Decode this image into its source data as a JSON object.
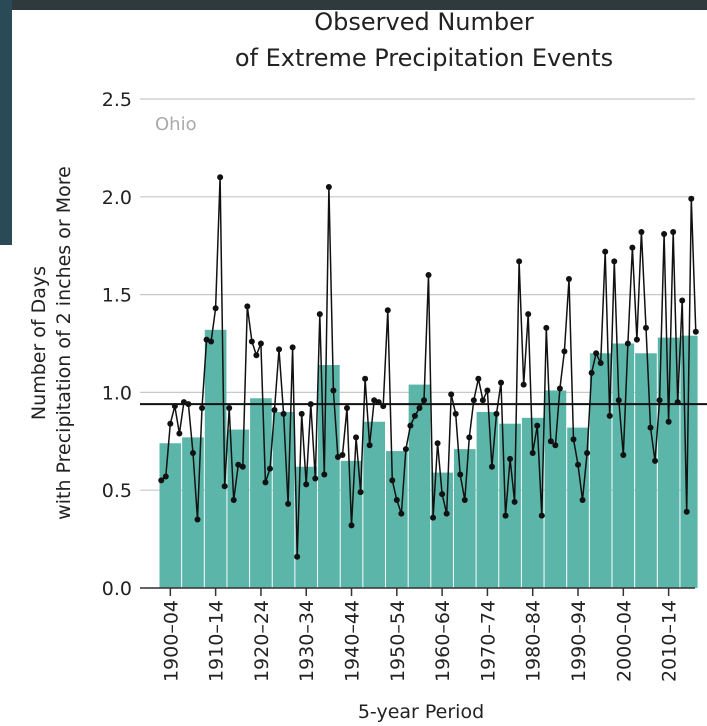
{
  "chart_data": {
    "type": "bar",
    "title": [
      "Observed Number",
      "of Extreme Precipitation Events"
    ],
    "ylabel": [
      "Number of Days",
      "with Precipitation of 2 inches or More"
    ],
    "xlabel": "5-year Period",
    "annotation": "Ohio",
    "categories": [
      "1900–04",
      null,
      "1910–14",
      null,
      "1920–24",
      null,
      "1930–34",
      null,
      "1940–44",
      null,
      "1950–54",
      null,
      "1960–64",
      null,
      "1970–74",
      null,
      "1980–84",
      null,
      "1990–94",
      null,
      "2000–04",
      null,
      "2010–14",
      null
    ],
    "values": [
      0.74,
      0.77,
      1.32,
      0.81,
      0.97,
      0.9,
      0.62,
      1.14,
      0.65,
      0.85,
      0.7,
      1.04,
      0.59,
      0.71,
      0.9,
      0.84,
      0.87,
      1.01,
      0.82,
      1.2,
      1.25,
      1.2,
      1.28,
      1.29
    ],
    "color": "#5bb5a8",
    "line": {
      "color": "#111111",
      "x": [
        1900,
        1901,
        1902,
        1903,
        1904,
        1905,
        1906,
        1907,
        1908,
        1909,
        1910,
        1911,
        1912,
        1913,
        1914,
        1915,
        1916,
        1917,
        1918,
        1919,
        1920,
        1921,
        1922,
        1923,
        1924,
        1925,
        1926,
        1927,
        1928,
        1929,
        1930,
        1931,
        1932,
        1933,
        1934,
        1935,
        1936,
        1937,
        1938,
        1939,
        1940,
        1941,
        1942,
        1943,
        1944,
        1945,
        1946,
        1947,
        1948,
        1949,
        1950,
        1951,
        1952,
        1953,
        1954,
        1955,
        1956,
        1957,
        1958,
        1959,
        1960,
        1961,
        1962,
        1963,
        1964,
        1965,
        1966,
        1967,
        1968,
        1969,
        1970,
        1971,
        1972,
        1973,
        1974,
        1975,
        1976,
        1977,
        1978,
        1979,
        1980,
        1981,
        1982,
        1983,
        1984,
        1985,
        1986,
        1987,
        1988,
        1989,
        1990,
        1991,
        1992,
        1993,
        1994,
        1995,
        1996,
        1997,
        1998,
        1999,
        2000,
        2001,
        2002,
        2003,
        2004,
        2005,
        2006,
        2007,
        2008,
        2009,
        2010,
        2011,
        2012,
        2013,
        2014,
        2015,
        2016,
        2017,
        2018
      ],
      "values": [
        0.55,
        0.57,
        0.84,
        0.93,
        0.79,
        0.95,
        0.94,
        0.69,
        0.35,
        0.92,
        1.27,
        1.26,
        1.43,
        2.1,
        0.52,
        0.92,
        0.45,
        0.63,
        0.62,
        1.44,
        1.26,
        1.19,
        1.25,
        0.54,
        0.61,
        0.91,
        1.22,
        0.89,
        0.43,
        1.23,
        0.16,
        0.89,
        0.53,
        0.94,
        0.56,
        1.4,
        0.58,
        2.05,
        1.01,
        0.67,
        0.68,
        0.92,
        0.32,
        0.77,
        0.49,
        1.07,
        0.73,
        0.96,
        0.95,
        0.93,
        1.42,
        0.55,
        0.45,
        0.38,
        0.71,
        0.83,
        0.88,
        0.92,
        0.96,
        1.6,
        0.36,
        0.74,
        0.48,
        0.38,
        0.99,
        0.89,
        0.58,
        0.45,
        0.77,
        0.96,
        1.07,
        0.96,
        1.01,
        0.62,
        0.89,
        1.05,
        0.37,
        0.66,
        0.44,
        1.67,
        1.04,
        1.4,
        0.69,
        0.83,
        0.37,
        1.33,
        0.75,
        0.73,
        1.02,
        1.21,
        1.58,
        0.76,
        0.63,
        0.45,
        0.69,
        1.1,
        1.2,
        1.15,
        1.72,
        0.88,
        1.67,
        0.96,
        0.68,
        1.25,
        1.74,
        1.27,
        1.82,
        1.33,
        0.82,
        0.65,
        0.96,
        1.81,
        0.85,
        1.82,
        0.95,
        1.47,
        0.39,
        1.99,
        1.31
      ]
    },
    "reference_value": 0.94,
    "ylim": [
      0,
      2.5
    ],
    "yticks": [
      {
        "value": 0,
        "label": "0.0"
      },
      0.5,
      {
        "value": 1,
        "label": "1.0"
      },
      1.5,
      {
        "value": 2,
        "label": "2.0"
      },
      2.5
    ],
    "grid": true
  }
}
